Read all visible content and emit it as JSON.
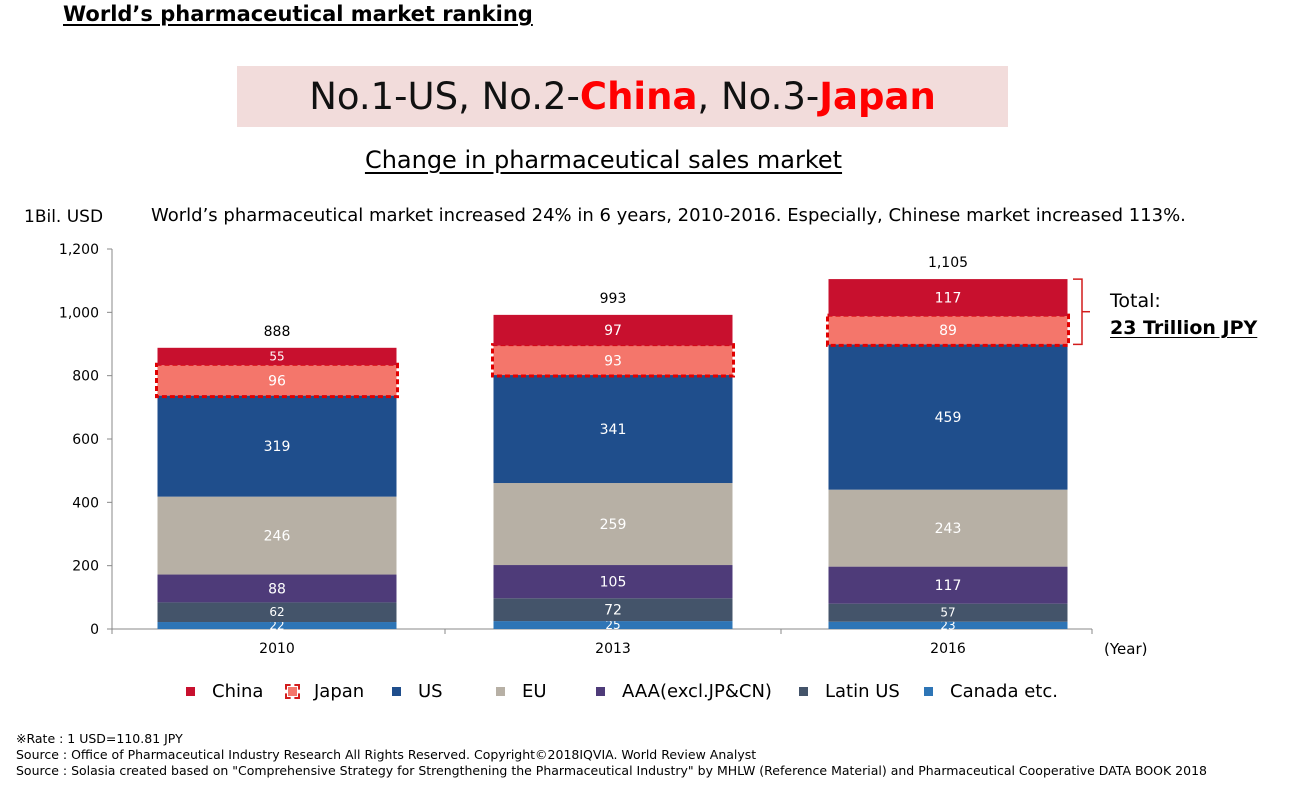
{
  "page_title": "World’s pharmaceutical market ranking",
  "banner": {
    "part1": "No.1-US, No.2-",
    "china": "China",
    "part2": ", No.3-",
    "japan": "Japan",
    "highlight_color": "#ff0000",
    "background": "#f2dcdb"
  },
  "chart_title": "Change in pharmaceutical sales market",
  "unit_label": "1Bil. USD",
  "note": "World’s pharmaceutical market increased 24% in 6 years, 2010-2016. Especially, Chinese market increased 113%.",
  "total_label": {
    "line1": "Total:",
    "line2": "23 Trillion JPY"
  },
  "chart_data": {
    "type": "bar",
    "stacked": true,
    "categories": [
      "2010",
      "2013",
      "2016"
    ],
    "xlabel": "(Year)",
    "ylabel": "1Bil. USD",
    "ylim": [
      0,
      1200
    ],
    "yticks": [
      "0",
      "200",
      "400",
      "600",
      "800",
      "1,000",
      "1,200"
    ],
    "ytick_values": [
      0,
      200,
      400,
      600,
      800,
      1000,
      1200
    ],
    "totals": [
      "888",
      "993",
      "1,105"
    ],
    "series": [
      {
        "name": "Canada etc.",
        "color": "#2e75b6",
        "values": [
          22,
          25,
          23
        ]
      },
      {
        "name": "Latin US",
        "color": "#44546a",
        "values": [
          62,
          72,
          57
        ]
      },
      {
        "name": "AAA(excl.JP&CN)",
        "color": "#4e3b79",
        "values": [
          88,
          105,
          117
        ]
      },
      {
        "name": "EU",
        "color": "#b7b0a5",
        "values": [
          246,
          259,
          243
        ]
      },
      {
        "name": "US",
        "color": "#1f4e8c",
        "values": [
          319,
          341,
          459
        ]
      },
      {
        "name": "Japan",
        "color": "#f4766b",
        "values": [
          96,
          93,
          89
        ],
        "highlighted": true
      },
      {
        "name": "China",
        "color": "#c8102e",
        "values": [
          55,
          97,
          117
        ]
      }
    ],
    "grid": false,
    "legend_position": "bottom"
  },
  "legend": [
    {
      "name": "China",
      "color": "#c8102e",
      "dashed": false
    },
    {
      "name": "Japan",
      "color": "#f4766b",
      "dashed": true
    },
    {
      "name": "US",
      "color": "#1f4e8c",
      "dashed": false
    },
    {
      "name": "EU",
      "color": "#b7b0a5",
      "dashed": false
    },
    {
      "name": "AAA(excl.JP&CN)",
      "color": "#4e3b79",
      "dashed": false
    },
    {
      "name": "Latin US",
      "color": "#44546a",
      "dashed": false
    },
    {
      "name": "Canada etc.",
      "color": "#2e75b6",
      "dashed": false
    }
  ],
  "footer": [
    "※Rate : 1 USD=110.81 JPY",
    "Source : Office of Pharmaceutical Industry Research All Rights Reserved. Copyright©2018IQVIA. World Review Analyst",
    "Source : Solasia created based on \"Comprehensive Strategy for Strengthening the Pharmaceutical Industry\" by MHLW (Reference Material) and Pharmaceutical Cooperative DATA BOOK 2018"
  ]
}
